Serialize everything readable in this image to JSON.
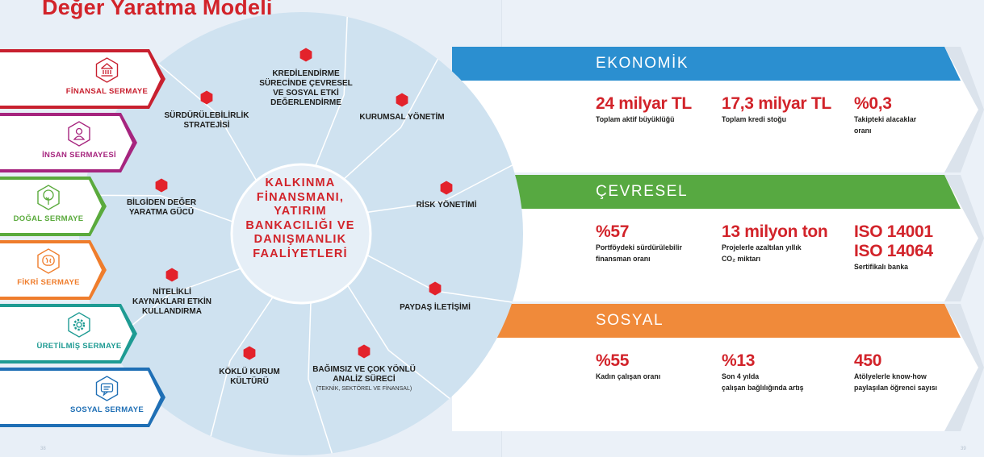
{
  "title": "Değer Yaratma Modeli",
  "center_text": [
    "KALKINMA",
    "FİNANSMANI,",
    "YATIRIM",
    "BANKACILIĞI VE",
    "DANIŞMANLIK",
    "FAALİYETLERİ"
  ],
  "wheel_segments": [
    {
      "label_lines": [
        "KREDİLENDİRME",
        "SÜRECİNDE ÇEVRESEL",
        "VE SOSYAL ETKİ",
        "DEĞERLENDİRME"
      ],
      "sub": ""
    },
    {
      "label_lines": [
        "KURUMSAL YÖNETİM"
      ],
      "sub": ""
    },
    {
      "label_lines": [
        "RİSK YÖNETİMİ"
      ],
      "sub": ""
    },
    {
      "label_lines": [
        "PAYDAŞ İLETİŞİMİ"
      ],
      "sub": ""
    },
    {
      "label_lines": [
        "BAĞIMSIZ VE ÇOK YÖNLÜ",
        "ANALİZ SÜRECİ"
      ],
      "sub": "(TEKNİK, SEKTÖREL VE FİNANSAL)"
    },
    {
      "label_lines": [
        "KÖKLÜ KURUM",
        "KÜLTÜRÜ"
      ],
      "sub": ""
    },
    {
      "label_lines": [
        "NİTELİKLİ",
        "KAYNAKLARI ETKİN",
        "KULLANDIRMA"
      ],
      "sub": ""
    },
    {
      "label_lines": [
        "BİLGİDEN DEĞER",
        "YARATMA GÜCÜ"
      ],
      "sub": ""
    },
    {
      "label_lines": [
        "SÜRDÜRÜLEBİLİRLİK",
        "STRATEJİSİ"
      ],
      "sub": ""
    }
  ],
  "capitals": [
    {
      "label": "FİNANSAL SERMAYE",
      "color": "#c8202f",
      "icon": "bank-icon"
    },
    {
      "label": "İNSAN SERMAYESİ",
      "color": "#a6247e",
      "icon": "person-icon"
    },
    {
      "label": "DOĞAL SERMAYE",
      "color": "#5aaa3c",
      "icon": "tree-icon"
    },
    {
      "label": "FİKRİ SERMAYE",
      "color": "#ef7d2c",
      "icon": "brain-icon"
    },
    {
      "label": "ÜRETİLMİŞ SERMAYE",
      "color": "#1e9b93",
      "icon": "gear-icon"
    },
    {
      "label": "SOSYAL SERMAYE",
      "color": "#1f6fb5",
      "icon": "speech-bubble-icon"
    }
  ],
  "bands": [
    {
      "title": "EKONOMİK",
      "color": "#2b8fd0",
      "metrics": [
        {
          "value_lines": [
            "24 milyar TL"
          ],
          "label_lines": [
            "Toplam aktif büyüklüğü"
          ]
        },
        {
          "value_lines": [
            "17,3 milyar TL"
          ],
          "label_lines": [
            "Toplam kredi stoğu"
          ]
        },
        {
          "value_lines": [
            "%0,3"
          ],
          "label_lines": [
            "Takipteki alacaklar",
            "oranı"
          ]
        }
      ]
    },
    {
      "title": "ÇEVRESEL",
      "color": "#57a941",
      "metrics": [
        {
          "value_lines": [
            "%57"
          ],
          "label_lines": [
            "Portföydeki sürdürülebilir",
            "finansman oranı"
          ]
        },
        {
          "value_lines": [
            "13 milyon ton"
          ],
          "label_lines": [
            "Projelerle azaltılan yıllık",
            "CO₂ miktarı"
          ]
        },
        {
          "value_lines": [
            "ISO 14001",
            "ISO 14064"
          ],
          "label_lines": [
            "Sertifikalı banka"
          ]
        }
      ]
    },
    {
      "title": "SOSYAL",
      "color": "#f08a3a",
      "metrics": [
        {
          "value_lines": [
            "%55"
          ],
          "label_lines": [
            "Kadın çalışan oranı"
          ]
        },
        {
          "value_lines": [
            "%13"
          ],
          "label_lines": [
            "Son 4 yılda",
            "çalışan bağlılığında artış"
          ]
        },
        {
          "value_lines": [
            "450"
          ],
          "label_lines": [
            "Atölyelerle know-how",
            "paylaşılan öğrenci sayısı"
          ]
        }
      ]
    }
  ],
  "page_numbers": [
    "38",
    "39"
  ]
}
